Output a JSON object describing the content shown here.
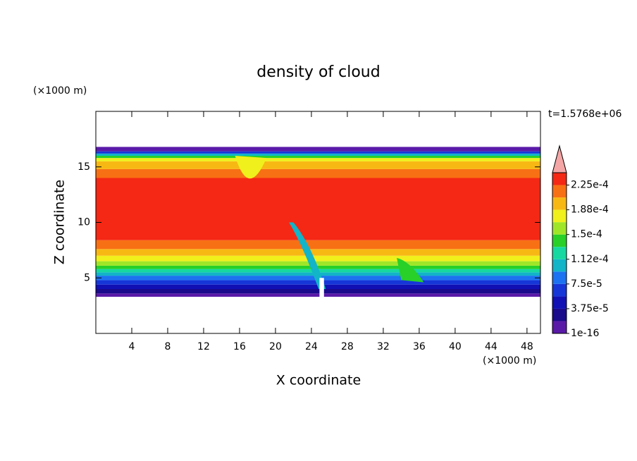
{
  "chart_data": {
    "type": "contour",
    "title": "density of cloud",
    "x_label": "X coordinate",
    "y_label": "Z coordinate",
    "x_unit": "(×1000 m)",
    "y_unit": "(×1000 m)",
    "time_label": "t=1.5768e+06",
    "xlim": [
      0,
      49.5
    ],
    "xticks": [
      4,
      8,
      12,
      16,
      20,
      24,
      28,
      32,
      36,
      40,
      44,
      48
    ],
    "ylim": [
      0,
      20
    ],
    "yticks": [
      5,
      10,
      15
    ],
    "colorbar": {
      "clim": [
        1e-16,
        0.00024375
      ],
      "ticks": [
        {
          "value": 1e-16,
          "label": "1e-16"
        },
        {
          "value": 3.75e-05,
          "label": "3.75e-5"
        },
        {
          "value": 7.5e-05,
          "label": "7.5e-5"
        },
        {
          "value": 0.0001125,
          "label": "1.12e-4"
        },
        {
          "value": 0.00015,
          "label": "1.5e-4"
        },
        {
          "value": 0.0001875,
          "label": "1.88e-4"
        },
        {
          "value": 0.000225,
          "label": "2.25e-4"
        }
      ],
      "colors": [
        "#5a1aa8",
        "#1a0a8c",
        "#1010b4",
        "#1636d8",
        "#1c72f0",
        "#12b4c8",
        "#16d8a0",
        "#28d028",
        "#a0e628",
        "#f0f01c",
        "#f8b814",
        "#f87014",
        "#f42814"
      ],
      "extend_color": "#f4a6a6"
    }
  }
}
